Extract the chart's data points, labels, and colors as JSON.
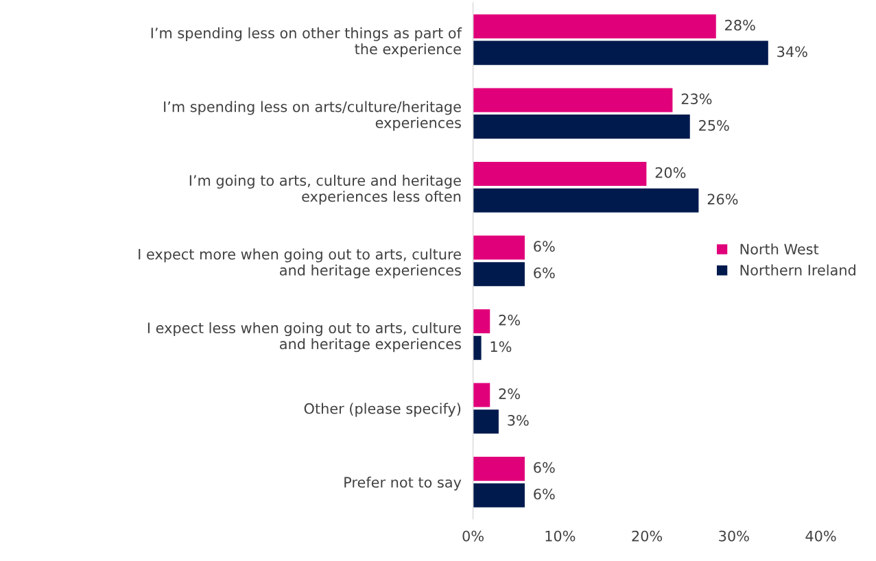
{
  "chart_data": {
    "type": "bar",
    "orientation": "horizontal",
    "categories": [
      "I’m spending less on other things as part of the experience",
      "I’m spending less on arts/culture/heritage experiences",
      "I’m going to arts, culture and heritage experiences less often",
      "I expect more when going out to arts, culture and heritage experiences",
      "I expect less when going out to arts, culture and heritage experiences",
      "Other (please specify)",
      "Prefer not to say"
    ],
    "series": [
      {
        "name": "North West",
        "color": "#e0007a",
        "values": [
          28,
          23,
          20,
          6,
          2,
          2,
          6
        ],
        "value_labels": [
          "28%",
          "23%",
          "20%",
          "6%",
          "2%",
          "2%",
          "6%"
        ]
      },
      {
        "name": "Northern Ireland",
        "color": "#001a4d",
        "values": [
          34,
          25,
          26,
          6,
          1,
          3,
          6
        ],
        "value_labels": [
          "34%",
          "25%",
          "26%",
          "6%",
          "1%",
          "3%",
          "6%"
        ]
      }
    ],
    "xlim": [
      0,
      40
    ],
    "xticks": [
      {
        "value": 0,
        "label": "0%"
      },
      {
        "value": 10,
        "label": "10%"
      },
      {
        "value": 20,
        "label": "20%"
      },
      {
        "value": 30,
        "label": "30%"
      },
      {
        "value": 40,
        "label": "40%"
      }
    ],
    "grid": false,
    "legend": "right"
  }
}
